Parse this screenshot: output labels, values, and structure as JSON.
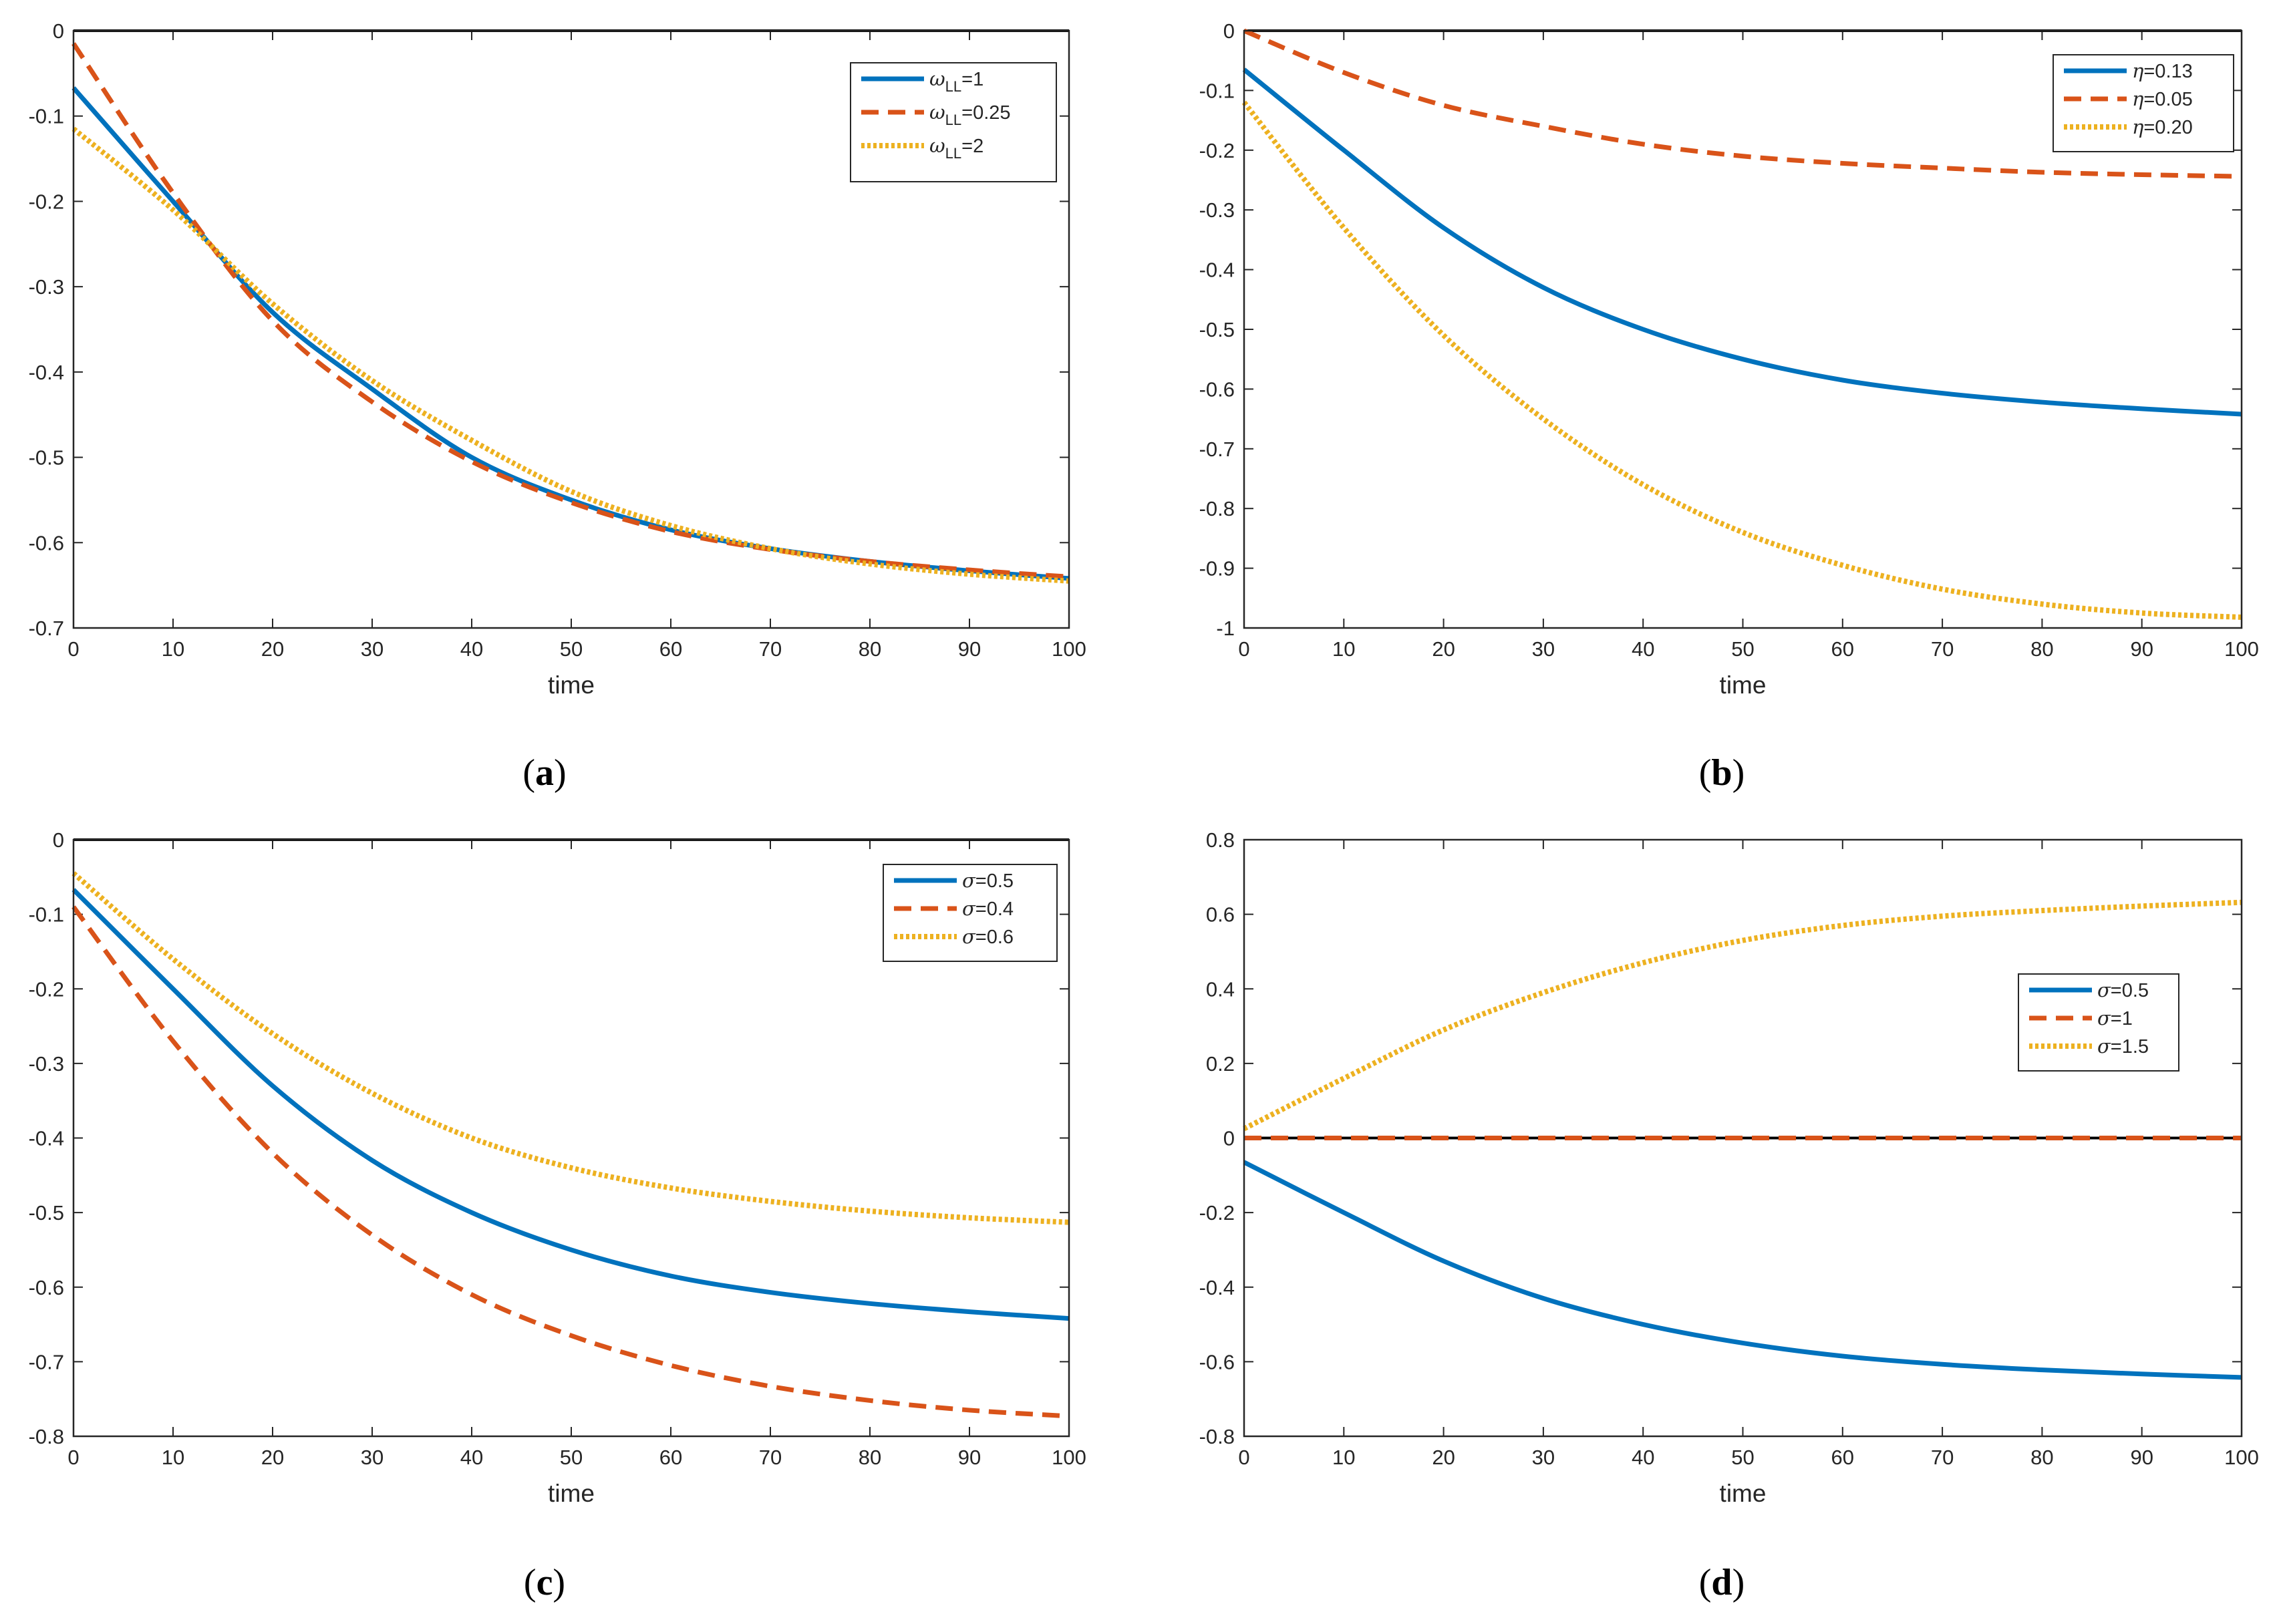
{
  "colors": {
    "blue": "#0072BD",
    "orange": "#D95319",
    "yellow": "#EDB120",
    "zero_line": "#000000"
  },
  "chart_data": [
    {
      "panel": "a",
      "caption": {
        "open": "(",
        "letter": "a",
        "close": ")"
      },
      "type": "line",
      "xlabel": "time",
      "ylabel": "",
      "xlim": [
        0,
        100
      ],
      "ylim": [
        -0.7,
        0
      ],
      "xticks": [
        0,
        10,
        20,
        30,
        40,
        50,
        60,
        70,
        80,
        90,
        100
      ],
      "yticks": [
        0,
        -0.1,
        -0.2,
        -0.3,
        -0.4,
        -0.5,
        -0.6,
        -0.7
      ],
      "zero_line": true,
      "legend_position": "top-right",
      "x": [
        0,
        10,
        20,
        30,
        40,
        50,
        60,
        70,
        80,
        90,
        100
      ],
      "series": [
        {
          "name": "ω_LL=1",
          "symbol": "ω",
          "sub": "LL",
          "rest": "=1",
          "style": "solid",
          "color": "blue",
          "values": [
            -0.067,
            -0.2,
            -0.33,
            -0.42,
            -0.5,
            -0.55,
            -0.585,
            -0.607,
            -0.622,
            -0.633,
            -0.642
          ]
        },
        {
          "name": "ω_LL=0.25",
          "symbol": "ω",
          "sub": "LL",
          "rest": "=0.25",
          "style": "dashed",
          "color": "orange",
          "values": [
            -0.015,
            -0.19,
            -0.34,
            -0.435,
            -0.505,
            -0.553,
            -0.587,
            -0.608,
            -0.622,
            -0.632,
            -0.64
          ]
        },
        {
          "name": "ω_LL=2",
          "symbol": "ω",
          "sub": "LL",
          "rest": "=2",
          "style": "dotted",
          "color": "yellow",
          "values": [
            -0.115,
            -0.21,
            -0.32,
            -0.41,
            -0.48,
            -0.54,
            -0.58,
            -0.607,
            -0.625,
            -0.637,
            -0.645
          ]
        }
      ]
    },
    {
      "panel": "b",
      "caption": {
        "open": "(",
        "letter": "b",
        "close": ")"
      },
      "type": "line",
      "xlabel": "time",
      "ylabel": "",
      "xlim": [
        0,
        100
      ],
      "ylim": [
        -1,
        0
      ],
      "xticks": [
        0,
        10,
        20,
        30,
        40,
        50,
        60,
        70,
        80,
        90,
        100
      ],
      "yticks": [
        0,
        -0.1,
        -0.2,
        -0.3,
        -0.4,
        -0.5,
        -0.6,
        -0.7,
        -0.8,
        -0.9,
        -1
      ],
      "zero_line": true,
      "legend_position": "top-right",
      "x": [
        0,
        10,
        20,
        30,
        40,
        50,
        60,
        70,
        80,
        90,
        100
      ],
      "series": [
        {
          "name": "η=0.13",
          "symbol": "η",
          "sub": "",
          "rest": "=0.13",
          "style": "solid",
          "color": "blue",
          "values": [
            -0.065,
            -0.2,
            -0.33,
            -0.43,
            -0.5,
            -0.55,
            -0.585,
            -0.607,
            -0.622,
            -0.633,
            -0.642
          ]
        },
        {
          "name": "η=0.05",
          "symbol": "η",
          "sub": "",
          "rest": "=0.05",
          "style": "dashed",
          "color": "orange",
          "values": [
            0,
            -0.07,
            -0.125,
            -0.16,
            -0.19,
            -0.21,
            -0.222,
            -0.23,
            -0.237,
            -0.241,
            -0.244
          ]
        },
        {
          "name": "η=0.20",
          "symbol": "η",
          "sub": "",
          "rest": "=0.20",
          "style": "dotted",
          "color": "yellow",
          "values": [
            -0.12,
            -0.33,
            -0.51,
            -0.65,
            -0.76,
            -0.84,
            -0.895,
            -0.935,
            -0.96,
            -0.975,
            -0.982
          ]
        }
      ]
    },
    {
      "panel": "c",
      "caption": {
        "open": "(",
        "letter": "c",
        "close": ")"
      },
      "type": "line",
      "xlabel": "time",
      "ylabel": "",
      "xlim": [
        0,
        100
      ],
      "ylim": [
        -0.8,
        0
      ],
      "xticks": [
        0,
        10,
        20,
        30,
        40,
        50,
        60,
        70,
        80,
        90,
        100
      ],
      "yticks": [
        0,
        -0.1,
        -0.2,
        -0.3,
        -0.4,
        -0.5,
        -0.6,
        -0.7,
        -0.8
      ],
      "zero_line": true,
      "legend_position": "top-right",
      "x": [
        0,
        10,
        20,
        30,
        40,
        50,
        60,
        70,
        80,
        90,
        100
      ],
      "series": [
        {
          "name": "σ=0.5",
          "symbol": "σ",
          "sub": "",
          "rest": "=0.5",
          "style": "solid",
          "color": "blue",
          "values": [
            -0.067,
            -0.2,
            -0.33,
            -0.43,
            -0.5,
            -0.55,
            -0.585,
            -0.607,
            -0.622,
            -0.633,
            -0.642
          ]
        },
        {
          "name": "σ=0.4",
          "symbol": "σ",
          "sub": "",
          "rest": "=0.4",
          "style": "dashed",
          "color": "orange",
          "values": [
            -0.09,
            -0.27,
            -0.42,
            -0.53,
            -0.61,
            -0.665,
            -0.705,
            -0.733,
            -0.752,
            -0.765,
            -0.773
          ]
        },
        {
          "name": "σ=0.6",
          "symbol": "σ",
          "sub": "",
          "rest": "=0.6",
          "style": "dotted",
          "color": "yellow",
          "values": [
            -0.045,
            -0.16,
            -0.26,
            -0.34,
            -0.4,
            -0.44,
            -0.467,
            -0.485,
            -0.498,
            -0.507,
            -0.513
          ]
        }
      ]
    },
    {
      "panel": "d",
      "caption": {
        "open": "(",
        "letter": "d",
        "close": ")"
      },
      "type": "line",
      "xlabel": "time",
      "ylabel": "",
      "xlim": [
        0,
        100
      ],
      "ylim": [
        -0.8,
        0.8
      ],
      "xticks": [
        0,
        10,
        20,
        30,
        40,
        50,
        60,
        70,
        80,
        90,
        100
      ],
      "yticks": [
        0.8,
        0.6,
        0.4,
        0.2,
        0,
        -0.2,
        -0.4,
        -0.6,
        -0.8
      ],
      "zero_line": true,
      "legend_position": "right",
      "x": [
        0,
        10,
        20,
        30,
        40,
        50,
        60,
        70,
        80,
        90,
        100
      ],
      "series": [
        {
          "name": "σ=0.5",
          "symbol": "σ",
          "sub": "",
          "rest": "=0.5",
          "style": "solid",
          "color": "blue",
          "values": [
            -0.065,
            -0.2,
            -0.33,
            -0.43,
            -0.5,
            -0.55,
            -0.585,
            -0.607,
            -0.622,
            -0.633,
            -0.642
          ]
        },
        {
          "name": "σ=1",
          "symbol": "σ",
          "sub": "",
          "rest": "=1",
          "style": "dashed",
          "color": "orange",
          "values": [
            0,
            0,
            0,
            0,
            0,
            0,
            0,
            0,
            0,
            0,
            0
          ]
        },
        {
          "name": "σ=1.5",
          "symbol": "σ",
          "sub": "",
          "rest": "=1.5",
          "style": "dotted",
          "color": "yellow",
          "values": [
            0.025,
            0.16,
            0.29,
            0.39,
            0.47,
            0.53,
            0.57,
            0.595,
            0.61,
            0.622,
            0.632
          ]
        }
      ]
    }
  ]
}
